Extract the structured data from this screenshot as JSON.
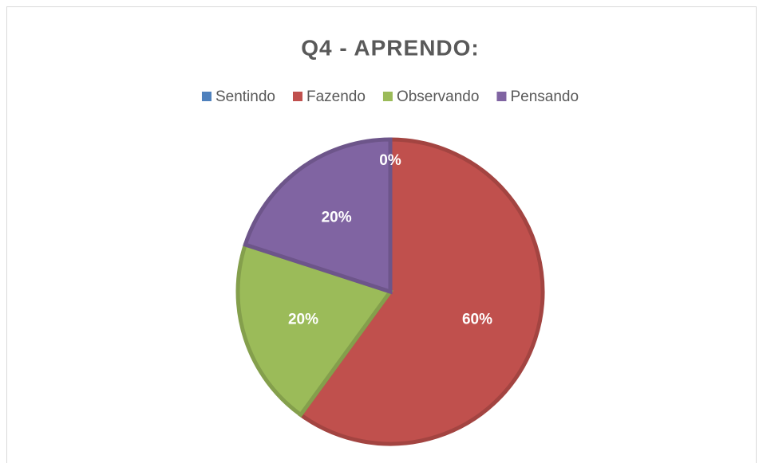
{
  "chart_data": {
    "type": "pie",
    "title": "Q4 - APRENDO:",
    "categories": [
      "Sentindo",
      "Fazendo",
      "Observando",
      "Pensando"
    ],
    "values": [
      0,
      60,
      20,
      20
    ],
    "value_labels": [
      "0%",
      "60%",
      "20%",
      "20%"
    ],
    "colors": [
      "#4f81bd",
      "#c0504d",
      "#9bbb59",
      "#8064a2"
    ],
    "legend": "top"
  }
}
